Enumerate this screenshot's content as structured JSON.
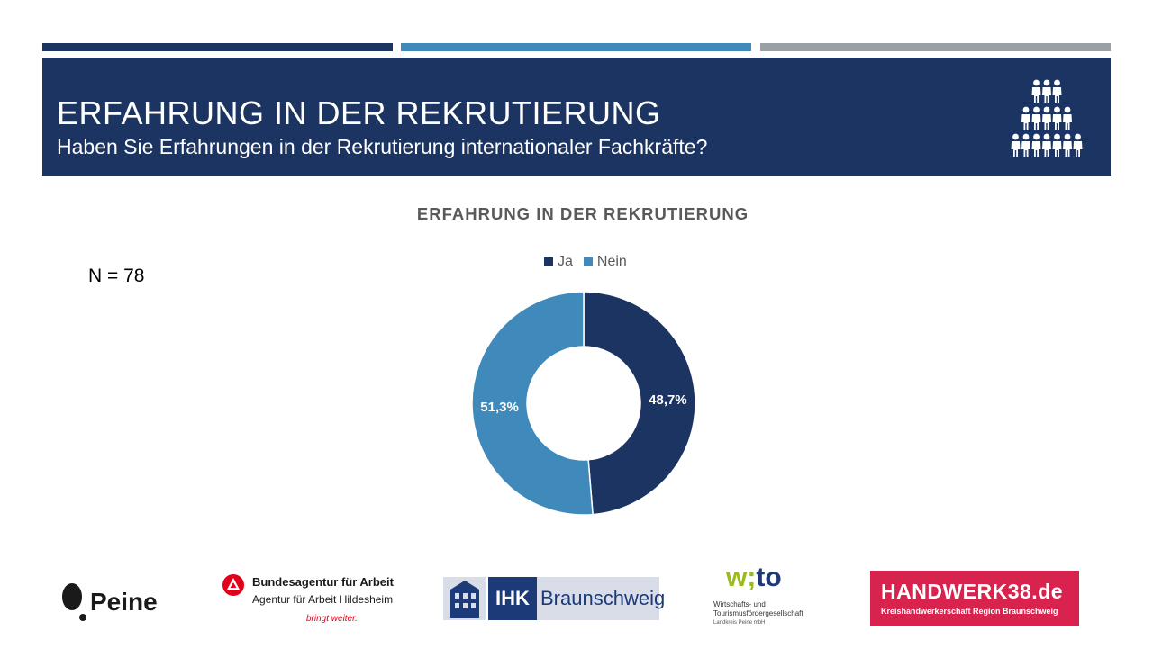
{
  "header": {
    "title": "ERFAHRUNG IN DER REKRUTIERUNG",
    "subtitle": "Haben Sie Erfahrungen in der Rekrutierung internationaler Fachkräfte?",
    "icon": "people-pyramid-icon"
  },
  "sample_size": "N = 78",
  "colors": {
    "navy": "#1c3461",
    "blue": "#3f8abb",
    "grey": "#9aa0a6"
  },
  "chart_data": {
    "type": "pie",
    "variant": "donut",
    "title": "ERFAHRUNG IN DER REKRUTIERUNG",
    "legend_position": "top",
    "categories": [
      "Ja",
      "Nein"
    ],
    "values": [
      48.7,
      51.3
    ],
    "labels": [
      "48,7%",
      "51,3%"
    ],
    "colors": [
      "#1c3461",
      "#3f8abb"
    ]
  },
  "logos": {
    "peine": {
      "text": "Peine"
    },
    "ba": {
      "line1": "Bundesagentur für Arbeit",
      "line2": "Agentur für Arbeit Hildesheim",
      "line3": "bringt weiter."
    },
    "ihk": {
      "box": "IHK",
      "name": "Braunschweig"
    },
    "wito": {
      "part1": "w;",
      "part2": "to",
      "line1": "Wirtschafts- und",
      "line2": "Tourismusfördergesellschaft",
      "line3": "Landkreis Peine mbH"
    },
    "handwerk": {
      "main": "HANDWERK38.de",
      "sub": "Kreishandwerkerschaft Region Braunschweig"
    }
  }
}
